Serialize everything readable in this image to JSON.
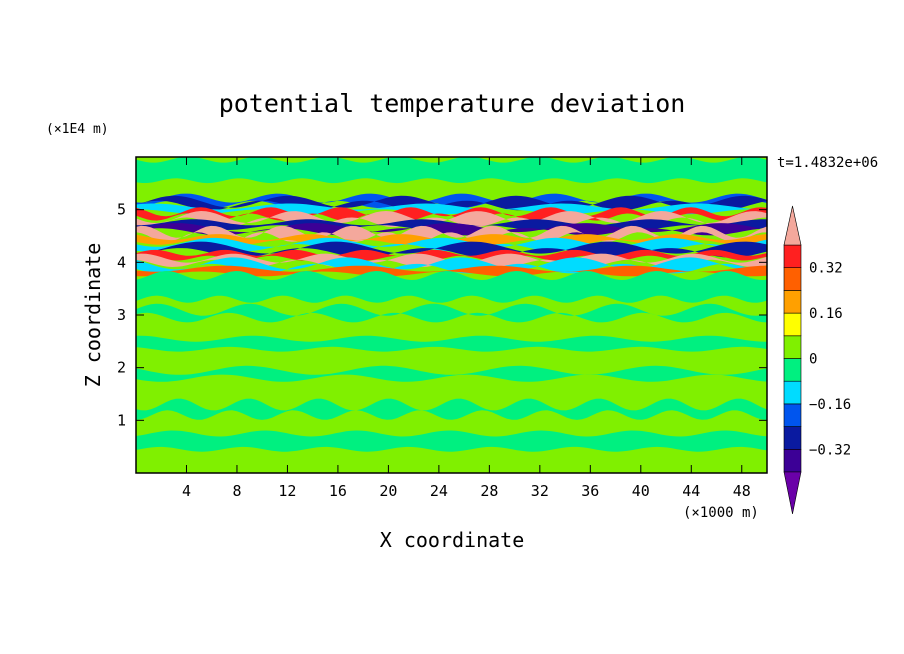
{
  "chart_data": {
    "type": "heatmap",
    "title": "potential temperature deviation",
    "xlabel": "X coordinate",
    "ylabel": "Z coordinate",
    "x_unit_label": "(×1000 m)",
    "y_unit_label": "(×1E4 m)",
    "time_label": "t=1.4832e+06",
    "xlim": [
      0,
      50
    ],
    "ylim": [
      0,
      6
    ],
    "x_ticks": [
      4,
      8,
      12,
      16,
      20,
      24,
      28,
      32,
      36,
      40,
      44,
      48
    ],
    "y_ticks": [
      1,
      2,
      3,
      4,
      5
    ],
    "colorbar": {
      "labels": [
        {
          "text": "0.32",
          "value": 0.32
        },
        {
          "text": "0.16",
          "value": 0.16
        },
        {
          "text": "0",
          "value": 0
        },
        {
          "text": "−0.16",
          "value": -0.16
        },
        {
          "text": "−0.32",
          "value": -0.32
        }
      ],
      "levels": [
        -0.4,
        -0.32,
        -0.24,
        -0.16,
        -0.08,
        0,
        0.08,
        0.16,
        0.24,
        0.32,
        0.4
      ],
      "colors": {
        "below": "#6a00a8",
        "bins": [
          "#3c0096",
          "#0a1aa0",
          "#0055ee",
          "#00dcff",
          "#00f080",
          "#80f000",
          "#ffff00",
          "#ffa000",
          "#ff6000",
          "#ff2020"
        ],
        "above": "#f4a89c"
      }
    },
    "field": {
      "background": "#80f000",
      "bands": [
        {
          "z_top": 5.95,
          "z_bottom": 5.55,
          "color": "#00f080"
        },
        {
          "z_top": 5.22,
          "z_bottom": 5.1,
          "color": "#0055ee"
        },
        {
          "z_top": 5.15,
          "z_bottom": 5.08,
          "color": "#0a1aa0"
        },
        {
          "z_top": 5.06,
          "z_bottom": 4.96,
          "color": "#00dcff"
        },
        {
          "z_top": 4.96,
          "z_bottom": 4.86,
          "color": "#ff2020"
        },
        {
          "z_top": 4.86,
          "z_bottom": 4.76,
          "color": "#f4a89c"
        },
        {
          "z_top": 4.76,
          "z_bottom": 4.66,
          "color": "#0a1aa0"
        },
        {
          "z_top": 4.66,
          "z_bottom": 4.58,
          "color": "#3c0096"
        },
        {
          "z_top": 4.58,
          "z_bottom": 4.48,
          "color": "#f4a89c"
        },
        {
          "z_top": 4.48,
          "z_bottom": 4.38,
          "color": "#ffa000"
        },
        {
          "z_top": 4.38,
          "z_bottom": 4.28,
          "color": "#00dcff"
        },
        {
          "z_top": 4.28,
          "z_bottom": 4.18,
          "color": "#0a1aa0"
        },
        {
          "z_top": 4.18,
          "z_bottom": 4.08,
          "color": "#ff2020"
        },
        {
          "z_top": 4.08,
          "z_bottom": 3.98,
          "color": "#f4a89c"
        },
        {
          "z_top": 3.98,
          "z_bottom": 3.88,
          "color": "#00dcff"
        },
        {
          "z_top": 3.88,
          "z_bottom": 3.78,
          "color": "#ff6000"
        },
        {
          "z_top": 3.75,
          "z_bottom": 3.3,
          "color": "#00f080"
        },
        {
          "z_top": 3.1,
          "z_bottom": 2.95,
          "color": "#00f080"
        },
        {
          "z_top": 2.55,
          "z_bottom": 2.35,
          "color": "#00f080"
        },
        {
          "z_top": 1.95,
          "z_bottom": 1.8,
          "color": "#00f080"
        },
        {
          "z_top": 1.3,
          "z_bottom": 1.1,
          "color": "#00f080"
        },
        {
          "z_top": 0.75,
          "z_bottom": 0.45,
          "color": "#00f080"
        }
      ]
    }
  }
}
